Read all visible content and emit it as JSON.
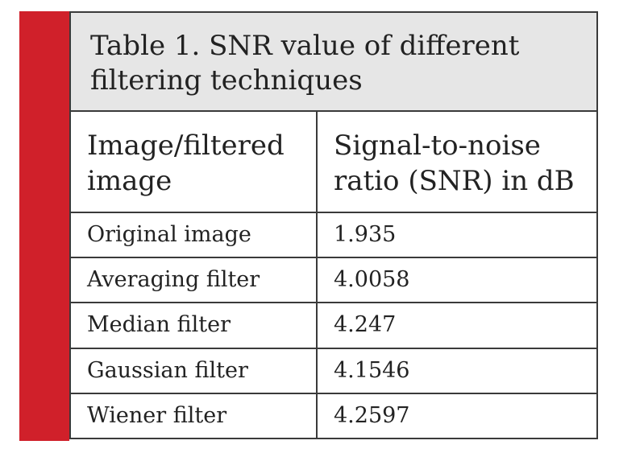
{
  "table": {
    "title_line1": "Table 1. SNR value of different",
    "title_line2": "filtering techniques",
    "columns": [
      {
        "line1": "Image/filtered",
        "line2": "image"
      },
      {
        "line1": "Signal-to-noise",
        "line2": "ratio (SNR) in dB"
      }
    ],
    "rows": [
      {
        "image": "Original image",
        "snr": "1.935"
      },
      {
        "image": "Averaging filter",
        "snr": "4.0058"
      },
      {
        "image": "Median filter",
        "snr": "4.247"
      },
      {
        "image": "Gaussian filter",
        "snr": "4.1546"
      },
      {
        "image": "Wiener filter",
        "snr": "4.2597"
      }
    ]
  },
  "colors": {
    "accent_bar": "#d0202a",
    "title_background": "#e6e6e6",
    "rule": "#3a3a3a"
  }
}
